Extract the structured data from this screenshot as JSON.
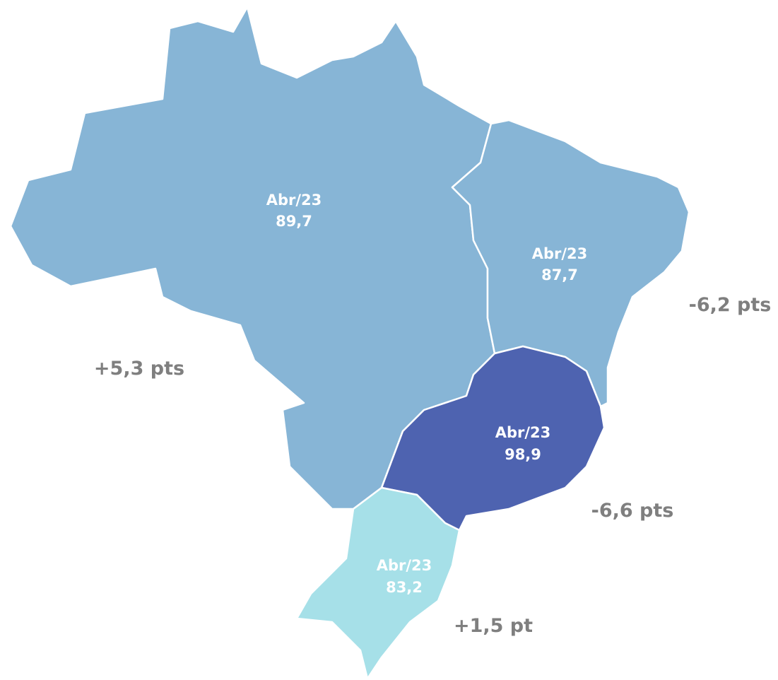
{
  "regions": [
    {
      "label": "Abr/23",
      "value": "89,7",
      "change": "+5,3 pts"
    },
    {
      "label": "Abr/23",
      "value": "87,7",
      "change": "-6,2 pts"
    },
    {
      "label": "Abr/23",
      "value": "98,9",
      "change": "-6,6 pts"
    },
    {
      "label": "Abr/23",
      "value": "83,2",
      "change": "+1,5 pt"
    }
  ]
}
